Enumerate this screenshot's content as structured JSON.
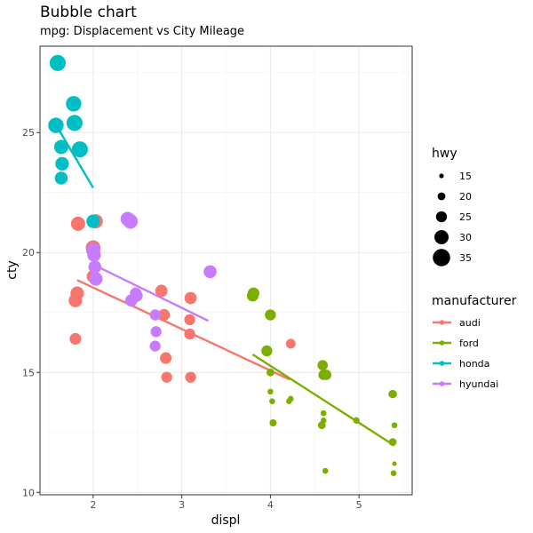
{
  "chart_data": {
    "type": "scatter",
    "title": "Bubble chart",
    "subtitle": "mpg: Displacement vs City Mileage",
    "xlabel": "displ",
    "ylabel": "cty",
    "xlim": [
      1.4,
      5.6
    ],
    "ylim": [
      9.9,
      28.6
    ],
    "x_ticks": [
      2,
      3,
      4,
      5
    ],
    "y_ticks": [
      10,
      15,
      20,
      25
    ],
    "grid": true,
    "legend_placement": "right",
    "size_legend": {
      "title": "hwy",
      "entries": [
        15,
        20,
        25,
        30,
        35
      ]
    },
    "color_legend": {
      "title": "manufacturer",
      "entries": [
        {
          "name": "audi",
          "color": "#F8766D"
        },
        {
          "name": "ford",
          "color": "#7CAE00"
        },
        {
          "name": "honda",
          "color": "#00BFC4"
        },
        {
          "name": "hyundai",
          "color": "#C77CFF"
        }
      ]
    },
    "series": [
      {
        "name": "audi",
        "color": "#F8766D",
        "points": [
          {
            "x": 1.8,
            "y": 18.0,
            "hwy": 29
          },
          {
            "x": 1.82,
            "y": 18.3,
            "hwy": 29
          },
          {
            "x": 1.8,
            "y": 16.4,
            "hwy": 26
          },
          {
            "x": 1.83,
            "y": 21.2,
            "hwy": 30
          },
          {
            "x": 2.0,
            "y": 20.2,
            "hwy": 31
          },
          {
            "x": 2.03,
            "y": 21.3,
            "hwy": 30
          },
          {
            "x": 2.0,
            "y": 19.0,
            "hwy": 28
          },
          {
            "x": 2.77,
            "y": 18.4,
            "hwy": 27
          },
          {
            "x": 2.8,
            "y": 17.4,
            "hwy": 26
          },
          {
            "x": 2.82,
            "y": 15.6,
            "hwy": 26
          },
          {
            "x": 2.83,
            "y": 14.8,
            "hwy": 25
          },
          {
            "x": 3.1,
            "y": 18.1,
            "hwy": 27
          },
          {
            "x": 3.09,
            "y": 17.2,
            "hwy": 25
          },
          {
            "x": 3.09,
            "y": 16.6,
            "hwy": 25
          },
          {
            "x": 3.1,
            "y": 14.8,
            "hwy": 25
          },
          {
            "x": 4.23,
            "y": 16.2,
            "hwy": 23
          }
        ]
      },
      {
        "name": "ford",
        "color": "#7CAE00",
        "points": [
          {
            "x": 3.8,
            "y": 18.2,
            "hwy": 26
          },
          {
            "x": 3.81,
            "y": 18.3,
            "hwy": 26
          },
          {
            "x": 3.96,
            "y": 15.9,
            "hwy": 25
          },
          {
            "x": 4.0,
            "y": 17.4,
            "hwy": 25
          },
          {
            "x": 4.0,
            "y": 15.0,
            "hwy": 20
          },
          {
            "x": 4.0,
            "y": 14.2,
            "hwy": 17
          },
          {
            "x": 4.02,
            "y": 13.8,
            "hwy": 17
          },
          {
            "x": 4.03,
            "y": 12.9,
            "hwy": 19
          },
          {
            "x": 4.21,
            "y": 13.8,
            "hwy": 17
          },
          {
            "x": 4.23,
            "y": 13.9,
            "hwy": 17
          },
          {
            "x": 4.59,
            "y": 15.3,
            "hwy": 24
          },
          {
            "x": 4.6,
            "y": 14.9,
            "hwy": 24
          },
          {
            "x": 4.63,
            "y": 14.9,
            "hwy": 24
          },
          {
            "x": 4.6,
            "y": 13.3,
            "hwy": 17
          },
          {
            "x": 4.6,
            "y": 13.0,
            "hwy": 17
          },
          {
            "x": 4.58,
            "y": 12.8,
            "hwy": 20
          },
          {
            "x": 4.62,
            "y": 10.9,
            "hwy": 17
          },
          {
            "x": 4.97,
            "y": 13.0,
            "hwy": 18
          },
          {
            "x": 5.38,
            "y": 14.1,
            "hwy": 21
          },
          {
            "x": 5.38,
            "y": 12.1,
            "hwy": 20
          },
          {
            "x": 5.4,
            "y": 12.8,
            "hwy": 17
          },
          {
            "x": 5.4,
            "y": 11.2,
            "hwy": 15
          },
          {
            "x": 5.39,
            "y": 10.8,
            "hwy": 17
          }
        ]
      },
      {
        "name": "honda",
        "color": "#00BFC4",
        "points": [
          {
            "x": 1.6,
            "y": 27.9,
            "hwy": 33
          },
          {
            "x": 1.58,
            "y": 25.3,
            "hwy": 32
          },
          {
            "x": 1.64,
            "y": 24.4,
            "hwy": 30
          },
          {
            "x": 1.65,
            "y": 23.7,
            "hwy": 29
          },
          {
            "x": 1.64,
            "y": 23.1,
            "hwy": 28
          },
          {
            "x": 1.78,
            "y": 26.2,
            "hwy": 32
          },
          {
            "x": 1.79,
            "y": 25.4,
            "hwy": 33
          },
          {
            "x": 1.85,
            "y": 24.3,
            "hwy": 33
          },
          {
            "x": 2.0,
            "y": 21.3,
            "hwy": 29
          }
        ]
      },
      {
        "name": "hyundai",
        "color": "#C77CFF",
        "points": [
          {
            "x": 2.0,
            "y": 20.1,
            "hwy": 30
          },
          {
            "x": 2.01,
            "y": 19.9,
            "hwy": 29
          },
          {
            "x": 2.02,
            "y": 19.4,
            "hwy": 28
          },
          {
            "x": 2.03,
            "y": 18.9,
            "hwy": 29
          },
          {
            "x": 2.39,
            "y": 21.4,
            "hwy": 30
          },
          {
            "x": 2.42,
            "y": 21.3,
            "hwy": 31
          },
          {
            "x": 2.43,
            "y": 18.0,
            "hwy": 27
          },
          {
            "x": 2.48,
            "y": 18.3,
            "hwy": 26
          },
          {
            "x": 2.49,
            "y": 18.2,
            "hwy": 27
          },
          {
            "x": 2.7,
            "y": 17.4,
            "hwy": 25
          },
          {
            "x": 2.71,
            "y": 16.7,
            "hwy": 25
          },
          {
            "x": 2.7,
            "y": 16.1,
            "hwy": 25
          },
          {
            "x": 3.32,
            "y": 19.2,
            "hwy": 28
          }
        ]
      }
    ],
    "trend_lines": [
      {
        "name": "audi",
        "x1": 1.82,
        "y1": 18.85,
        "x2": 4.22,
        "y2": 14.7
      },
      {
        "name": "ford",
        "x1": 3.8,
        "y1": 15.75,
        "x2": 5.4,
        "y2": 11.95
      },
      {
        "name": "honda",
        "x1": 1.6,
        "y1": 25.2,
        "x2": 2.0,
        "y2": 22.7
      },
      {
        "name": "hyundai",
        "x1": 2.0,
        "y1": 19.5,
        "x2": 3.3,
        "y2": 17.15
      }
    ]
  }
}
